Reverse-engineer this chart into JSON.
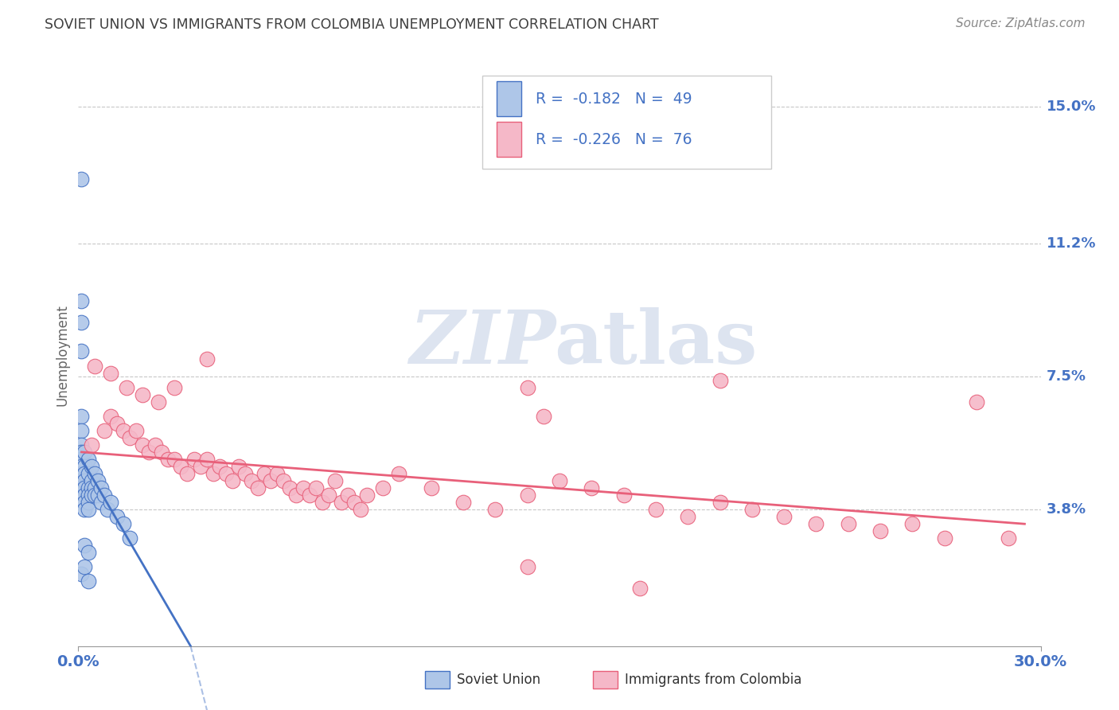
{
  "title": "SOVIET UNION VS IMMIGRANTS FROM COLOMBIA UNEMPLOYMENT CORRELATION CHART",
  "source": "Source: ZipAtlas.com",
  "ylabel": "Unemployment",
  "yticks": [
    0.038,
    0.075,
    0.112,
    0.15
  ],
  "ytick_labels": [
    "3.8%",
    "7.5%",
    "11.2%",
    "15.0%"
  ],
  "xmin": 0.0,
  "xmax": 0.3,
  "ymin": 0.0,
  "ymax": 0.162,
  "blue_R": "-0.182",
  "blue_N": "49",
  "pink_R": "-0.226",
  "pink_N": "76",
  "blue_color": "#aec6e8",
  "pink_color": "#f5b8c8",
  "blue_line_color": "#4472c4",
  "pink_line_color": "#e8607a",
  "background_color": "#ffffff",
  "grid_color": "#c8c8c8",
  "title_color": "#404040",
  "axis_label_color": "#4472c4",
  "blue_scatter": [
    [
      0.001,
      0.13
    ],
    [
      0.001,
      0.096
    ],
    [
      0.001,
      0.09
    ],
    [
      0.001,
      0.082
    ],
    [
      0.001,
      0.064
    ],
    [
      0.001,
      0.06
    ],
    [
      0.001,
      0.056
    ],
    [
      0.001,
      0.054
    ],
    [
      0.001,
      0.052
    ],
    [
      0.001,
      0.05
    ],
    [
      0.001,
      0.048
    ],
    [
      0.001,
      0.046
    ],
    [
      0.001,
      0.044
    ],
    [
      0.002,
      0.054
    ],
    [
      0.002,
      0.05
    ],
    [
      0.002,
      0.048
    ],
    [
      0.002,
      0.046
    ],
    [
      0.002,
      0.044
    ],
    [
      0.002,
      0.042
    ],
    [
      0.002,
      0.04
    ],
    [
      0.002,
      0.038
    ],
    [
      0.003,
      0.052
    ],
    [
      0.003,
      0.048
    ],
    [
      0.003,
      0.044
    ],
    [
      0.003,
      0.042
    ],
    [
      0.003,
      0.04
    ],
    [
      0.003,
      0.038
    ],
    [
      0.004,
      0.05
    ],
    [
      0.004,
      0.046
    ],
    [
      0.004,
      0.044
    ],
    [
      0.004,
      0.042
    ],
    [
      0.005,
      0.048
    ],
    [
      0.005,
      0.044
    ],
    [
      0.005,
      0.042
    ],
    [
      0.006,
      0.046
    ],
    [
      0.006,
      0.042
    ],
    [
      0.007,
      0.044
    ],
    [
      0.007,
      0.04
    ],
    [
      0.008,
      0.042
    ],
    [
      0.009,
      0.038
    ],
    [
      0.01,
      0.04
    ],
    [
      0.012,
      0.036
    ],
    [
      0.014,
      0.034
    ],
    [
      0.016,
      0.03
    ],
    [
      0.001,
      0.02
    ],
    [
      0.002,
      0.022
    ],
    [
      0.003,
      0.018
    ],
    [
      0.002,
      0.028
    ],
    [
      0.003,
      0.026
    ]
  ],
  "pink_scatter": [
    [
      0.005,
      0.078
    ],
    [
      0.01,
      0.076
    ],
    [
      0.015,
      0.072
    ],
    [
      0.02,
      0.07
    ],
    [
      0.025,
      0.068
    ],
    [
      0.03,
      0.072
    ],
    [
      0.04,
      0.08
    ],
    [
      0.004,
      0.056
    ],
    [
      0.008,
      0.06
    ],
    [
      0.01,
      0.064
    ],
    [
      0.012,
      0.062
    ],
    [
      0.014,
      0.06
    ],
    [
      0.016,
      0.058
    ],
    [
      0.018,
      0.06
    ],
    [
      0.02,
      0.056
    ],
    [
      0.022,
      0.054
    ],
    [
      0.024,
      0.056
    ],
    [
      0.026,
      0.054
    ],
    [
      0.028,
      0.052
    ],
    [
      0.03,
      0.052
    ],
    [
      0.032,
      0.05
    ],
    [
      0.034,
      0.048
    ],
    [
      0.036,
      0.052
    ],
    [
      0.038,
      0.05
    ],
    [
      0.04,
      0.052
    ],
    [
      0.042,
      0.048
    ],
    [
      0.044,
      0.05
    ],
    [
      0.046,
      0.048
    ],
    [
      0.048,
      0.046
    ],
    [
      0.05,
      0.05
    ],
    [
      0.052,
      0.048
    ],
    [
      0.054,
      0.046
    ],
    [
      0.056,
      0.044
    ],
    [
      0.058,
      0.048
    ],
    [
      0.06,
      0.046
    ],
    [
      0.062,
      0.048
    ],
    [
      0.064,
      0.046
    ],
    [
      0.066,
      0.044
    ],
    [
      0.068,
      0.042
    ],
    [
      0.07,
      0.044
    ],
    [
      0.072,
      0.042
    ],
    [
      0.074,
      0.044
    ],
    [
      0.076,
      0.04
    ],
    [
      0.078,
      0.042
    ],
    [
      0.08,
      0.046
    ],
    [
      0.082,
      0.04
    ],
    [
      0.084,
      0.042
    ],
    [
      0.086,
      0.04
    ],
    [
      0.088,
      0.038
    ],
    [
      0.09,
      0.042
    ],
    [
      0.095,
      0.044
    ],
    [
      0.1,
      0.048
    ],
    [
      0.11,
      0.044
    ],
    [
      0.12,
      0.04
    ],
    [
      0.13,
      0.038
    ],
    [
      0.14,
      0.042
    ],
    [
      0.15,
      0.046
    ],
    [
      0.16,
      0.044
    ],
    [
      0.17,
      0.042
    ],
    [
      0.18,
      0.038
    ],
    [
      0.19,
      0.036
    ],
    [
      0.2,
      0.04
    ],
    [
      0.21,
      0.038
    ],
    [
      0.22,
      0.036
    ],
    [
      0.23,
      0.034
    ],
    [
      0.24,
      0.034
    ],
    [
      0.14,
      0.072
    ],
    [
      0.2,
      0.074
    ],
    [
      0.28,
      0.068
    ],
    [
      0.14,
      0.022
    ],
    [
      0.175,
      0.016
    ],
    [
      0.29,
      0.03
    ],
    [
      0.145,
      0.064
    ],
    [
      0.25,
      0.032
    ],
    [
      0.26,
      0.034
    ],
    [
      0.27,
      0.03
    ]
  ],
  "legend_blue_label": "Soviet Union",
  "legend_pink_label": "Immigrants from Colombia"
}
